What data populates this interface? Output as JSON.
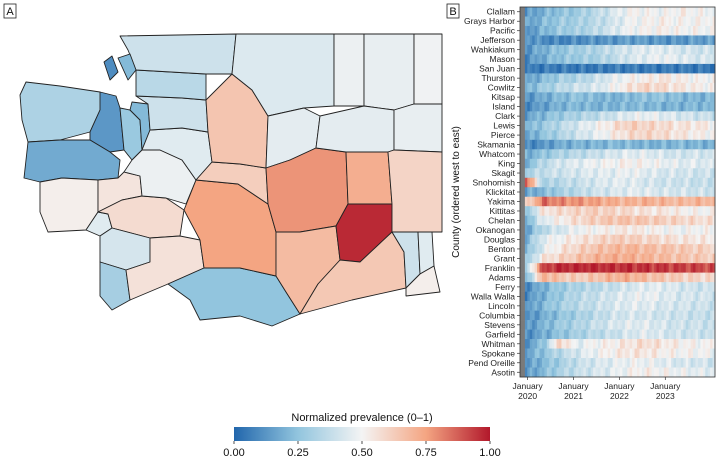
{
  "figure": {
    "panel_a_label": "A",
    "panel_b_label": "B"
  },
  "colors": {
    "low": "#2166ac",
    "mid": "#f4f4f4",
    "high": "#b2182b",
    "missing": "#7a7a7a",
    "border": "#222222"
  },
  "chart_data": [
    {
      "type": "map",
      "panel": "A",
      "description_scale": "normalized prevalence 0-1",
      "regions": [
        {
          "name": "Clallam",
          "value": 0.32
        },
        {
          "name": "Jefferson",
          "value": 0.13
        },
        {
          "name": "Grays Harbor",
          "value": 0.18
        },
        {
          "name": "Mason",
          "value": 0.27
        },
        {
          "name": "Kitsap",
          "value": 0.22
        },
        {
          "name": "Pacific",
          "value": 0.52
        },
        {
          "name": "Wahkiakum",
          "value": 0.45
        },
        {
          "name": "Thurston",
          "value": 0.55
        },
        {
          "name": "Lewis",
          "value": 0.58
        },
        {
          "name": "Pierce",
          "value": 0.48
        },
        {
          "name": "King",
          "value": 0.45
        },
        {
          "name": "Snohomish",
          "value": 0.4
        },
        {
          "name": "Skagit",
          "value": 0.35
        },
        {
          "name": "Whatcom",
          "value": 0.4
        },
        {
          "name": "Island",
          "value": 0.22
        },
        {
          "name": "San Juan",
          "value": 0.1
        },
        {
          "name": "Cowlitz",
          "value": 0.42
        },
        {
          "name": "Clark",
          "value": 0.3
        },
        {
          "name": "Skamania",
          "value": 0.56
        },
        {
          "name": "Klickitat",
          "value": 0.25
        },
        {
          "name": "Yakima",
          "value": 0.75
        },
        {
          "name": "Kittitas",
          "value": 0.62
        },
        {
          "name": "Chelan",
          "value": 0.65
        },
        {
          "name": "Okanogan",
          "value": 0.44
        },
        {
          "name": "Douglas",
          "value": 0.46
        },
        {
          "name": "Grant",
          "value": 0.78
        },
        {
          "name": "Benton",
          "value": 0.68
        },
        {
          "name": "Franklin",
          "value": 0.97
        },
        {
          "name": "Adams",
          "value": 0.72
        },
        {
          "name": "Ferry",
          "value": 0.48
        },
        {
          "name": "Stevens",
          "value": 0.47
        },
        {
          "name": "Pend Oreille",
          "value": 0.49
        },
        {
          "name": "Lincoln",
          "value": 0.46
        },
        {
          "name": "Spokane",
          "value": 0.47
        },
        {
          "name": "Whitman",
          "value": 0.6
        },
        {
          "name": "Walla Walla",
          "value": 0.64
        },
        {
          "name": "Columbia",
          "value": 0.4
        },
        {
          "name": "Garfield",
          "value": 0.45
        },
        {
          "name": "Asotin",
          "value": 0.52
        }
      ],
      "legend": {
        "title": "Normalized prevalence (0–1)",
        "ticks": [
          "0.00",
          "0.25",
          "0.50",
          "0.75",
          "1.00"
        ],
        "range": [
          0,
          1
        ],
        "placement": "bottom"
      }
    },
    {
      "type": "heatmap",
      "panel": "B",
      "ylabel": "County (ordered west to east)",
      "counties": [
        "Clallam",
        "Grays Harbor",
        "Pacific",
        "Jefferson",
        "Wahkiakum",
        "Mason",
        "San Juan",
        "Thurston",
        "Cowlitz",
        "Kitsap",
        "Island",
        "Clark",
        "Lewis",
        "Pierce",
        "Skamania",
        "Whatcom",
        "King",
        "Skagit",
        "Snohomish",
        "Klickitat",
        "Yakima",
        "Kittitas",
        "Chelan",
        "Okanogan",
        "Douglas",
        "Benton",
        "Grant",
        "Franklin",
        "Adams",
        "Ferry",
        "Walla Walla",
        "Lincoln",
        "Columbia",
        "Stevens",
        "Garfield",
        "Whitman",
        "Spokane",
        "Pend Oreille",
        "Asotin"
      ],
      "x_ticks": [
        {
          "date": "2020-01",
          "line1": "January",
          "line2": "2020"
        },
        {
          "date": "2021-01",
          "line1": "January",
          "line2": "2021"
        },
        {
          "date": "2022-01",
          "line1": "January",
          "line2": "2022"
        },
        {
          "date": "2023-01",
          "line1": "January",
          "line2": "2023"
        }
      ],
      "x_range": [
        "2019-11",
        "2024-02"
      ],
      "row_profiles": [
        [
          0.12,
          0.2,
          0.25,
          0.28,
          0.35,
          0.42,
          0.5,
          0.5,
          0.48,
          0.52,
          0.5,
          0.48
        ],
        [
          0.15,
          0.22,
          0.28,
          0.3,
          0.35,
          0.4,
          0.48,
          0.5,
          0.52,
          0.5,
          0.5,
          0.52
        ],
        [
          0.12,
          0.2,
          0.28,
          0.3,
          0.35,
          0.42,
          0.48,
          0.5,
          0.52,
          0.5,
          0.5,
          0.48
        ],
        [
          0.15,
          0.1,
          0.08,
          0.1,
          0.12,
          0.12,
          0.15,
          0.14,
          0.12,
          0.12,
          0.15,
          0.14
        ],
        [
          0.12,
          0.2,
          0.25,
          0.3,
          0.32,
          0.38,
          0.42,
          0.45,
          0.45,
          0.42,
          0.4,
          0.4
        ],
        [
          0.1,
          0.18,
          0.25,
          0.28,
          0.3,
          0.35,
          0.42,
          0.45,
          0.48,
          0.45,
          0.42,
          0.42
        ],
        [
          0.05,
          0.06,
          0.06,
          0.05,
          0.05,
          0.06,
          0.06,
          0.05,
          0.05,
          0.06,
          0.05,
          0.05
        ],
        [
          0.15,
          0.22,
          0.3,
          0.32,
          0.38,
          0.45,
          0.5,
          0.52,
          0.55,
          0.52,
          0.5,
          0.5
        ],
        [
          0.2,
          0.28,
          0.35,
          0.4,
          0.42,
          0.48,
          0.55,
          0.6,
          0.58,
          0.55,
          0.52,
          0.5
        ],
        [
          0.12,
          0.18,
          0.22,
          0.25,
          0.22,
          0.2,
          0.22,
          0.25,
          0.25,
          0.22,
          0.2,
          0.22
        ],
        [
          0.1,
          0.15,
          0.2,
          0.22,
          0.2,
          0.2,
          0.22,
          0.22,
          0.2,
          0.2,
          0.22,
          0.2
        ],
        [
          0.15,
          0.22,
          0.28,
          0.32,
          0.35,
          0.4,
          0.45,
          0.48,
          0.45,
          0.42,
          0.4,
          0.38
        ],
        [
          0.2,
          0.28,
          0.35,
          0.42,
          0.48,
          0.55,
          0.62,
          0.6,
          0.58,
          0.55,
          0.55,
          0.52
        ],
        [
          0.15,
          0.25,
          0.32,
          0.4,
          0.45,
          0.52,
          0.58,
          0.6,
          0.58,
          0.55,
          0.52,
          0.5
        ],
        [
          0.08,
          0.12,
          0.18,
          0.2,
          0.2,
          0.22,
          0.22,
          0.2,
          0.2,
          0.22,
          0.2,
          0.2
        ],
        [
          0.18,
          0.25,
          0.32,
          0.35,
          0.38,
          0.42,
          0.45,
          0.45,
          0.42,
          0.4,
          0.42,
          0.4
        ],
        [
          0.2,
          0.35,
          0.42,
          0.45,
          0.48,
          0.5,
          0.52,
          0.5,
          0.48,
          0.45,
          0.45,
          0.42
        ],
        [
          0.3,
          0.38,
          0.4,
          0.42,
          0.45,
          0.45,
          0.48,
          0.45,
          0.42,
          0.42,
          0.4,
          0.4
        ],
        [
          0.9,
          0.3,
          0.35,
          0.38,
          0.42,
          0.45,
          0.45,
          0.42,
          0.4,
          0.4,
          0.38,
          0.38
        ],
        [
          0.15,
          0.22,
          0.3,
          0.35,
          0.4,
          0.42,
          0.45,
          0.45,
          0.42,
          0.42,
          0.4,
          0.4
        ],
        [
          0.55,
          0.85,
          0.8,
          0.78,
          0.75,
          0.72,
          0.7,
          0.72,
          0.7,
          0.68,
          0.7,
          0.7
        ],
        [
          0.25,
          0.55,
          0.58,
          0.6,
          0.62,
          0.6,
          0.58,
          0.55,
          0.55,
          0.52,
          0.5,
          0.5
        ],
        [
          0.2,
          0.45,
          0.52,
          0.58,
          0.62,
          0.65,
          0.66,
          0.64,
          0.62,
          0.6,
          0.58,
          0.56
        ],
        [
          0.15,
          0.35,
          0.42,
          0.48,
          0.5,
          0.52,
          0.55,
          0.52,
          0.5,
          0.48,
          0.5,
          0.5
        ],
        [
          0.2,
          0.45,
          0.5,
          0.55,
          0.58,
          0.62,
          0.62,
          0.6,
          0.58,
          0.55,
          0.55,
          0.52
        ],
        [
          0.2,
          0.45,
          0.55,
          0.6,
          0.65,
          0.68,
          0.7,
          0.68,
          0.66,
          0.64,
          0.62,
          0.6
        ],
        [
          0.25,
          0.55,
          0.6,
          0.65,
          0.7,
          0.72,
          0.72,
          0.7,
          0.68,
          0.66,
          0.64,
          0.62
        ],
        [
          0.3,
          0.92,
          0.97,
          0.98,
          0.97,
          0.96,
          0.96,
          0.95,
          0.94,
          0.93,
          0.92,
          0.9
        ],
        [
          0.2,
          0.72,
          0.65,
          0.62,
          0.65,
          0.7,
          0.72,
          0.68,
          0.65,
          0.62,
          0.6,
          0.58
        ],
        [
          0.1,
          0.2,
          0.28,
          0.32,
          0.35,
          0.38,
          0.42,
          0.45,
          0.45,
          0.42,
          0.4,
          0.4
        ],
        [
          0.1,
          0.2,
          0.28,
          0.35,
          0.38,
          0.42,
          0.45,
          0.48,
          0.45,
          0.42,
          0.42,
          0.4
        ],
        [
          0.12,
          0.22,
          0.3,
          0.35,
          0.38,
          0.42,
          0.45,
          0.45,
          0.42,
          0.42,
          0.4,
          0.4
        ],
        [
          0.1,
          0.18,
          0.25,
          0.3,
          0.35,
          0.4,
          0.42,
          0.42,
          0.4,
          0.4,
          0.38,
          0.38
        ],
        [
          0.12,
          0.2,
          0.28,
          0.32,
          0.38,
          0.42,
          0.45,
          0.45,
          0.42,
          0.4,
          0.4,
          0.38
        ],
        [
          0.1,
          0.18,
          0.25,
          0.3,
          0.35,
          0.38,
          0.42,
          0.45,
          0.42,
          0.4,
          0.4,
          0.38
        ],
        [
          0.12,
          0.25,
          0.62,
          0.45,
          0.5,
          0.52,
          0.55,
          0.58,
          0.55,
          0.52,
          0.5,
          0.5
        ],
        [
          0.15,
          0.25,
          0.35,
          0.42,
          0.48,
          0.52,
          0.55,
          0.55,
          0.52,
          0.5,
          0.5,
          0.48
        ],
        [
          0.12,
          0.22,
          0.3,
          0.38,
          0.42,
          0.45,
          0.48,
          0.48,
          0.45,
          0.42,
          0.42,
          0.4
        ],
        [
          0.12,
          0.22,
          0.32,
          0.38,
          0.42,
          0.45,
          0.5,
          0.52,
          0.5,
          0.48,
          0.46,
          0.45
        ]
      ]
    }
  ]
}
